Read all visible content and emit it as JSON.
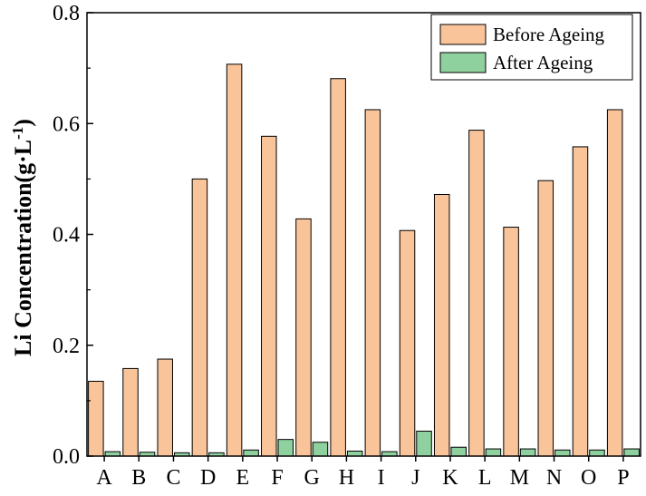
{
  "chart_data": {
    "type": "bar",
    "title": "",
    "xlabel": "",
    "ylabel": {
      "prefix": "Li Concentration(g·L",
      "superscript": "-1",
      "suffix": ")"
    },
    "ylim": [
      0,
      0.8
    ],
    "yticks": [
      "0.0",
      "0.2",
      "0.4",
      "0.6",
      "0.8"
    ],
    "categories": [
      "A",
      "B",
      "C",
      "D",
      "E",
      "F",
      "G",
      "H",
      "I",
      "J",
      "K",
      "L",
      "M",
      "N",
      "O",
      "P"
    ],
    "series": [
      {
        "name": "Before Ageing",
        "color": "#F9C49A",
        "values": [
          0.135,
          0.158,
          0.175,
          0.5,
          0.707,
          0.577,
          0.428,
          0.681,
          0.625,
          0.407,
          0.472,
          0.588,
          0.413,
          0.497,
          0.558,
          0.625
        ]
      },
      {
        "name": "After Ageing",
        "color": "#8FD19E",
        "values": [
          0.008,
          0.007,
          0.006,
          0.006,
          0.011,
          0.03,
          0.025,
          0.009,
          0.008,
          0.045,
          0.016,
          0.013,
          0.013,
          0.011,
          0.011,
          0.013
        ]
      }
    ],
    "legend_position": "top-right",
    "grid": false
  }
}
